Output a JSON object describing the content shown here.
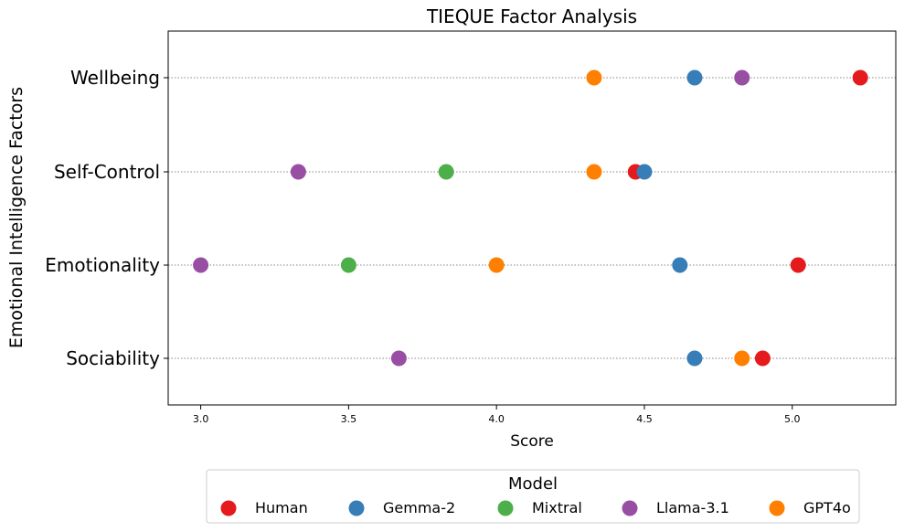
{
  "chart_data": {
    "type": "scatter",
    "title": "TIEQUE Factor Analysis",
    "xlabel": "Score",
    "ylabel": "Emotional Intelligence Factors",
    "xlim": [
      2.89,
      5.35
    ],
    "xticks": [
      "3.0",
      "3.5",
      "4.0",
      "4.5",
      "5.0"
    ],
    "xtick_values": [
      3.0,
      3.5,
      4.0,
      4.5,
      5.0
    ],
    "categories": [
      "Wellbeing",
      "Self-Control",
      "Emotionality",
      "Sociability"
    ],
    "grid": "horizontal dotted",
    "legend": {
      "title": "Model",
      "placement": "bottom-center"
    },
    "series": [
      {
        "name": "Human",
        "color": "#e41a1c",
        "values": [
          5.23,
          4.47,
          5.02,
          4.9
        ]
      },
      {
        "name": "Gemma-2",
        "color": "#377eb8",
        "values": [
          4.67,
          4.5,
          4.62,
          4.67
        ]
      },
      {
        "name": "Mixtral",
        "color": "#4daf4a",
        "values": [
          null,
          3.83,
          3.5,
          null
        ]
      },
      {
        "name": "Llama-3.1",
        "color": "#984ea3",
        "values": [
          4.83,
          3.33,
          3.0,
          3.67
        ]
      },
      {
        "name": "GPT4o",
        "color": "#ff7f00",
        "values": [
          4.33,
          4.33,
          4.0,
          4.83
        ]
      }
    ]
  }
}
